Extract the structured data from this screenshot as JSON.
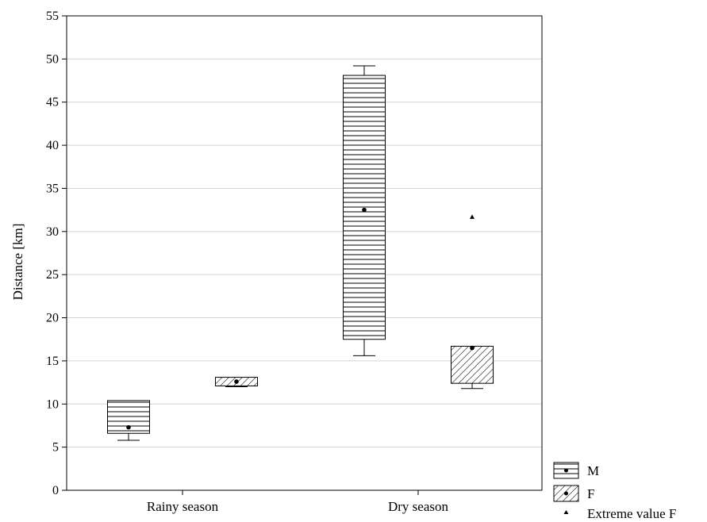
{
  "chart_data": {
    "type": "boxplot",
    "ylabel": "Distance [km]",
    "xlabel": "",
    "ylim": [
      0,
      55
    ],
    "yticks": [
      0,
      5,
      10,
      15,
      20,
      25,
      30,
      35,
      40,
      45,
      50,
      55
    ],
    "grid": true,
    "categories": [
      "Rainy season",
      "Dry season"
    ],
    "series": [
      {
        "name": "M",
        "pattern": "horizontal-lines",
        "boxes": [
          {
            "whisker_low": 5.8,
            "q1": 6.6,
            "median": 7.3,
            "q3": 10.4,
            "whisker_high": 10.4
          },
          {
            "whisker_low": 15.6,
            "q1": 17.5,
            "median": 32.5,
            "q3": 48.1,
            "whisker_high": 49.2
          }
        ]
      },
      {
        "name": "F",
        "pattern": "diagonal-hatch",
        "boxes": [
          {
            "whisker_low": 12.0,
            "q1": 12.1,
            "median": 12.6,
            "q3": 13.1,
            "whisker_high": 13.1
          },
          {
            "whisker_low": 11.8,
            "q1": 12.4,
            "median": 16.5,
            "q3": 16.7,
            "whisker_high": 16.7
          }
        ]
      }
    ],
    "extremes": [
      {
        "series": "F",
        "category": "Dry season",
        "value": 31.7
      }
    ],
    "legend": {
      "placement": "bottom-right",
      "entries": [
        "M",
        "F",
        "Extreme value F"
      ]
    }
  }
}
